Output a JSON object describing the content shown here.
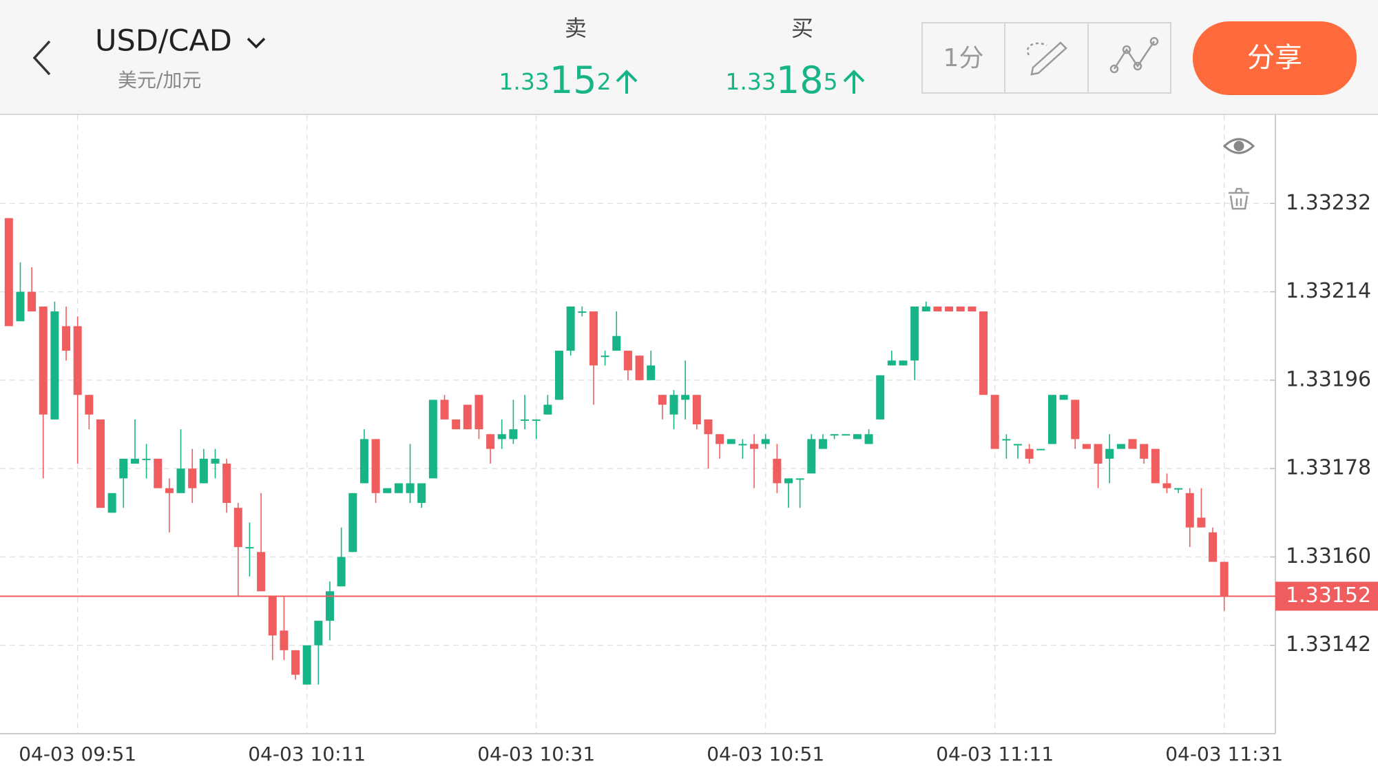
{
  "header": {
    "symbol": "USD/CAD",
    "symbol_cn": "美元/加元",
    "sell": {
      "label": "卖",
      "price": [
        "1.33",
        "15",
        "2"
      ]
    },
    "buy": {
      "label": "买",
      "price": [
        "1.33",
        "18",
        "5"
      ]
    },
    "interval": "1分",
    "share": "分享"
  },
  "chart_data": {
    "type": "candlestick",
    "categories": [
      null,
      null,
      null,
      null,
      null,
      null,
      "04-03 09:51",
      null,
      null,
      null,
      null,
      null,
      null,
      null,
      null,
      null,
      null,
      null,
      null,
      null,
      null,
      null,
      null,
      null,
      null,
      null,
      "04-03 10:11",
      null,
      null,
      null,
      null,
      null,
      null,
      null,
      null,
      null,
      null,
      null,
      null,
      null,
      null,
      null,
      null,
      null,
      null,
      null,
      "04-03 10:31",
      null,
      null,
      null,
      null,
      null,
      null,
      null,
      null,
      null,
      null,
      null,
      null,
      null,
      null,
      null,
      null,
      null,
      null,
      null,
      "04-03 10:51",
      null,
      null,
      null,
      null,
      null,
      null,
      null,
      null,
      null,
      null,
      null,
      null,
      null,
      null,
      null,
      null,
      null,
      null,
      null,
      "04-03 11:11",
      null,
      null,
      null,
      null,
      null,
      null,
      null,
      null,
      null,
      null,
      null,
      null,
      null,
      null,
      null,
      null,
      null,
      null,
      null,
      "04-03 11:31"
    ],
    "series": {
      "open": [
        1.33229,
        1.33208,
        1.33214,
        1.33211,
        1.33188,
        1.33207,
        1.33207,
        1.33193,
        1.33188,
        1.33169,
        1.33176,
        1.33179,
        1.3318,
        1.3318,
        1.33174,
        1.33173,
        1.33178,
        1.33175,
        1.33179,
        1.33179,
        1.3317,
        1.33162,
        1.33161,
        1.33152,
        1.33145,
        1.33141,
        1.33134,
        1.33142,
        1.33147,
        1.33154,
        1.33161,
        1.33175,
        1.33184,
        1.33173,
        1.33173,
        1.33173,
        1.33171,
        1.33176,
        1.33192,
        1.33188,
        1.33191,
        1.33193,
        1.33185,
        1.33184,
        1.33184,
        1.33188,
        1.33188,
        1.33189,
        1.33192,
        1.33202,
        1.3321,
        1.3321,
        1.33201,
        1.33202,
        1.33202,
        1.33201,
        1.33196,
        1.33193,
        1.33189,
        1.33192,
        1.33193,
        1.33188,
        1.33185,
        1.33183,
        1.33183,
        1.33183,
        1.33183,
        1.3318,
        1.33175,
        1.33176,
        1.33177,
        1.33182,
        1.33185,
        1.33185,
        1.33184,
        1.33183,
        1.33188,
        1.33199,
        1.33199,
        1.332,
        1.3321,
        1.33211,
        1.33211,
        1.33211,
        1.33211,
        1.3321,
        1.33193,
        1.33184,
        1.33183,
        1.33182,
        1.33182,
        1.33183,
        1.33192,
        1.33192,
        1.33183,
        1.33183,
        1.3318,
        1.33182,
        1.33184,
        1.33183,
        1.33182,
        1.33175,
        1.33174,
        1.33173,
        1.33168,
        1.33165,
        1.33159
      ],
      "high": [
        1.33229,
        1.3322,
        1.33219,
        1.33211,
        1.33212,
        1.33211,
        1.33209,
        1.33193,
        1.33188,
        1.33173,
        1.3318,
        1.33188,
        1.33183,
        1.3318,
        1.33176,
        1.33186,
        1.33182,
        1.33182,
        1.33182,
        1.3318,
        1.33171,
        1.33167,
        1.33173,
        1.33152,
        1.33152,
        1.33141,
        1.33142,
        1.33147,
        1.33155,
        1.33166,
        1.33173,
        1.33186,
        1.33184,
        1.33174,
        1.33175,
        1.33183,
        1.33175,
        1.33192,
        1.33193,
        1.33188,
        1.33191,
        1.33193,
        1.33185,
        1.33188,
        1.33192,
        1.33193,
        1.33188,
        1.33193,
        1.33202,
        1.33211,
        1.33211,
        1.3321,
        1.33202,
        1.3321,
        1.33202,
        1.33201,
        1.33202,
        1.33193,
        1.33194,
        1.332,
        1.33193,
        1.33188,
        1.33185,
        1.33184,
        1.33184,
        1.33185,
        1.33185,
        1.33183,
        1.33176,
        1.33176,
        1.33185,
        1.33185,
        1.33185,
        1.33185,
        1.33185,
        1.33186,
        1.33197,
        1.33202,
        1.332,
        1.33211,
        1.33212,
        1.33211,
        1.33211,
        1.33211,
        1.33211,
        1.3321,
        1.33193,
        1.33185,
        1.33183,
        1.33183,
        1.33182,
        1.33193,
        1.33193,
        1.33192,
        1.33183,
        1.33183,
        1.33185,
        1.33183,
        1.33184,
        1.33183,
        1.33182,
        1.33177,
        1.33174,
        1.33174,
        1.33174,
        1.33166,
        1.33159
      ],
      "low": [
        1.33207,
        1.33208,
        1.3321,
        1.33176,
        1.33188,
        1.332,
        1.33179,
        1.33186,
        1.3317,
        1.33169,
        1.3317,
        1.33179,
        1.33176,
        1.33174,
        1.33165,
        1.33173,
        1.33171,
        1.33175,
        1.33176,
        1.33169,
        1.33152,
        1.33156,
        1.33153,
        1.33139,
        1.33139,
        1.33135,
        1.33134,
        1.33134,
        1.33143,
        1.33154,
        1.33161,
        1.33175,
        1.33171,
        1.33173,
        1.33173,
        1.33171,
        1.3317,
        1.33176,
        1.33188,
        1.33186,
        1.33186,
        1.33184,
        1.33179,
        1.33182,
        1.33183,
        1.33186,
        1.33184,
        1.33189,
        1.33192,
        1.33201,
        1.33209,
        1.33191,
        1.33199,
        1.33202,
        1.33196,
        1.33196,
        1.33196,
        1.33188,
        1.33186,
        1.33188,
        1.33186,
        1.33178,
        1.3318,
        1.33183,
        1.3318,
        1.33174,
        1.33182,
        1.33173,
        1.3317,
        1.3317,
        1.33177,
        1.33182,
        1.33184,
        1.33185,
        1.33184,
        1.33183,
        1.33188,
        1.33199,
        1.33199,
        1.33196,
        1.3321,
        1.3321,
        1.3321,
        1.3321,
        1.3321,
        1.33193,
        1.33182,
        1.3318,
        1.3318,
        1.33179,
        1.33182,
        1.33183,
        1.33192,
        1.33182,
        1.33182,
        1.33174,
        1.33175,
        1.33182,
        1.33182,
        1.33179,
        1.33175,
        1.33173,
        1.33173,
        1.33162,
        1.33166,
        1.33159,
        1.33149
      ],
      "close": [
        1.33207,
        1.33214,
        1.3321,
        1.33189,
        1.3321,
        1.33202,
        1.33193,
        1.33189,
        1.3317,
        1.33173,
        1.3318,
        1.3318,
        1.3318,
        1.33174,
        1.33173,
        1.33178,
        1.33174,
        1.3318,
        1.3318,
        1.33171,
        1.33162,
        1.33162,
        1.33153,
        1.33144,
        1.33141,
        1.33136,
        1.33142,
        1.33147,
        1.33153,
        1.3316,
        1.33173,
        1.33184,
        1.33173,
        1.33174,
        1.33175,
        1.33175,
        1.33175,
        1.33192,
        1.33188,
        1.33186,
        1.33186,
        1.33186,
        1.33182,
        1.33185,
        1.33186,
        1.33188,
        1.33188,
        1.33191,
        1.33202,
        1.33211,
        1.3321,
        1.33199,
        1.33201,
        1.33205,
        1.33198,
        1.33196,
        1.33199,
        1.33191,
        1.33193,
        1.33193,
        1.33187,
        1.33185,
        1.33183,
        1.33184,
        1.33183,
        1.33182,
        1.33184,
        1.33175,
        1.33176,
        1.33176,
        1.33184,
        1.33184,
        1.33185,
        1.33185,
        1.33185,
        1.33185,
        1.33197,
        1.332,
        1.332,
        1.33211,
        1.33211,
        1.3321,
        1.3321,
        1.3321,
        1.3321,
        1.33193,
        1.33182,
        1.33184,
        1.33183,
        1.3318,
        1.33182,
        1.33193,
        1.33193,
        1.33184,
        1.33182,
        1.33179,
        1.33182,
        1.33183,
        1.33182,
        1.3318,
        1.33175,
        1.33174,
        1.33174,
        1.33166,
        1.33166,
        1.33159,
        1.33152
      ]
    },
    "up_color": "#17b487",
    "down_color": "#f05d5e",
    "ylim": [
      1.33124,
      1.3325
    ],
    "yticks": [
      1.33232,
      1.33214,
      1.33196,
      1.33178,
      {
        "value": 1.3316,
        "label": "1.33160"
      },
      1.33142
    ],
    "grid": true,
    "last_price": 1.33152,
    "last_price_color": "#f05d5e"
  }
}
